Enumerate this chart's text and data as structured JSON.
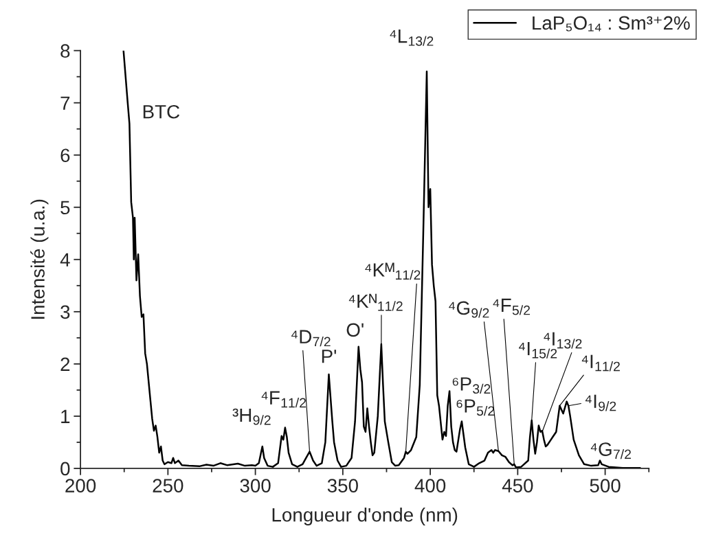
{
  "chart_data": {
    "type": "line",
    "xlabel": "Longueur d'onde (nm)",
    "ylabel": "Intensité (u.a.)",
    "xlim": [
      200,
      525
    ],
    "ylim": [
      0,
      8
    ],
    "xticks": [
      200,
      250,
      300,
      350,
      400,
      450,
      500
    ],
    "yticks": [
      0,
      1,
      2,
      3,
      4,
      5,
      6,
      7,
      8
    ],
    "grid": false,
    "legend": "top right",
    "marker": "none",
    "line_style": "solid",
    "series": [
      {
        "name": "LaP₅O₁₄ : Sm³⁺2%",
        "color": "#000000",
        "x": [
          224.6,
          227,
          228,
          229,
          230,
          230.5,
          231,
          232,
          233,
          234,
          235,
          236,
          237,
          238,
          240,
          241,
          242,
          243,
          244,
          245,
          246,
          247,
          248,
          250,
          252,
          253,
          254,
          256,
          258,
          262,
          268,
          272,
          276,
          280,
          284,
          290,
          294,
          298,
          300,
          302,
          304,
          305,
          307,
          310,
          313,
          315,
          316,
          317,
          318,
          319,
          321,
          324,
          327,
          329,
          331,
          333,
          335,
          338,
          340,
          342,
          344,
          345,
          347,
          349,
          352,
          355,
          357,
          359,
          360,
          361,
          362,
          363,
          364,
          365,
          366,
          367,
          368,
          370,
          372,
          373,
          374,
          376,
          378,
          380,
          382,
          385,
          386,
          387,
          389,
          392,
          394,
          396,
          398,
          399,
          400,
          401,
          402,
          403,
          404,
          405,
          407,
          408,
          409,
          410,
          411,
          412,
          413,
          414,
          415,
          417,
          418,
          420,
          422,
          425,
          428,
          431,
          433,
          435,
          436,
          437,
          439,
          441,
          443,
          445,
          447,
          448,
          449,
          452,
          456,
          457,
          458,
          459,
          460,
          461,
          462,
          463,
          464,
          465,
          466,
          467,
          469,
          470,
          471,
          472,
          474,
          476,
          478,
          479,
          480,
          482,
          485,
          488,
          492,
          496,
          497,
          498,
          502,
          510,
          520
        ],
        "values": [
          8.0,
          7.0,
          6.6,
          5.1,
          4.8,
          4.0,
          4.8,
          3.6,
          4.1,
          3.3,
          2.9,
          2.95,
          2.2,
          2.0,
          1.3,
          0.95,
          0.72,
          0.82,
          0.6,
          0.3,
          0.42,
          0.15,
          0.08,
          0.12,
          0.1,
          0.2,
          0.1,
          0.15,
          0.06,
          0.05,
          0.04,
          0.07,
          0.05,
          0.1,
          0.06,
          0.09,
          0.05,
          0.06,
          0.05,
          0.1,
          0.42,
          0.2,
          0.05,
          0.03,
          0.1,
          0.62,
          0.55,
          0.78,
          0.6,
          0.3,
          0.08,
          0.03,
          0.08,
          0.2,
          0.32,
          0.15,
          0.05,
          0.1,
          0.5,
          1.8,
          0.9,
          0.5,
          0.15,
          0.03,
          0.05,
          0.2,
          0.9,
          2.33,
          1.9,
          1.65,
          0.8,
          0.7,
          1.15,
          0.8,
          0.5,
          0.25,
          0.3,
          1.0,
          2.38,
          1.6,
          0.9,
          0.5,
          0.12,
          0.05,
          0.06,
          0.2,
          0.32,
          0.28,
          0.35,
          0.6,
          1.6,
          4.5,
          7.6,
          5.0,
          5.35,
          3.9,
          3.5,
          3.2,
          1.4,
          1.2,
          0.55,
          0.7,
          0.62,
          1.2,
          1.48,
          0.8,
          0.5,
          0.35,
          0.32,
          0.75,
          0.9,
          0.4,
          0.08,
          0.03,
          0.1,
          0.15,
          0.3,
          0.35,
          0.3,
          0.35,
          0.33,
          0.25,
          0.22,
          0.12,
          0.06,
          0.08,
          0.02,
          0.03,
          0.15,
          0.6,
          0.92,
          0.55,
          0.28,
          0.5,
          0.82,
          0.7,
          0.72,
          0.55,
          0.42,
          0.45,
          0.55,
          0.6,
          0.65,
          0.7,
          1.2,
          1.05,
          1.28,
          1.2,
          1.0,
          0.55,
          0.25,
          0.08,
          0.05,
          0.06,
          0.15,
          0.08,
          0.03,
          0.01,
          0.01
        ]
      }
    ],
    "annotations": [
      {
        "text": "BTC",
        "x": 228,
        "y": 6.6
      },
      {
        "text": "³H$_{9/2}$",
        "x": 304,
        "y": 0.42
      },
      {
        "text": "⁴F$_{11/2}$",
        "x": 317,
        "y": 0.78
      },
      {
        "text": "⁴D$_{7/2}$",
        "x": 331,
        "y": 0.32
      },
      {
        "text": "P'",
        "x": 342,
        "y": 1.8
      },
      {
        "text": "O'",
        "x": 359,
        "y": 2.33
      },
      {
        "text": "⁴Kᴺ$_{11/2}$",
        "x": 372,
        "y": 2.38
      },
      {
        "text": "⁴Kᴹ$_{11/2}$",
        "x": 386,
        "y": 0.32
      },
      {
        "text": "⁴L$_{13/2}$",
        "x": 398,
        "y": 7.6
      },
      {
        "text": "⁶P$_{3/2}$",
        "x": 411,
        "y": 1.48
      },
      {
        "text": "⁶P$_{5/2}$",
        "x": 418,
        "y": 0.9
      },
      {
        "text": "⁴G$_{9/2}$",
        "x": 439,
        "y": 0.33
      },
      {
        "text": "⁴F$_{5/2}$",
        "x": 448,
        "y": 0.08
      },
      {
        "text": "⁴I$_{15/2}$",
        "x": 458,
        "y": 0.92
      },
      {
        "text": "⁴I$_{13/2}$",
        "x": 464,
        "y": 0.7
      },
      {
        "text": "⁴I$_{11/2}$",
        "x": 474,
        "y": 1.2
      },
      {
        "text": "⁴I$_{9/2}$",
        "x": 479,
        "y": 1.2
      },
      {
        "text": "⁴G$_{7/2}$",
        "x": 497,
        "y": 0.15
      }
    ]
  }
}
